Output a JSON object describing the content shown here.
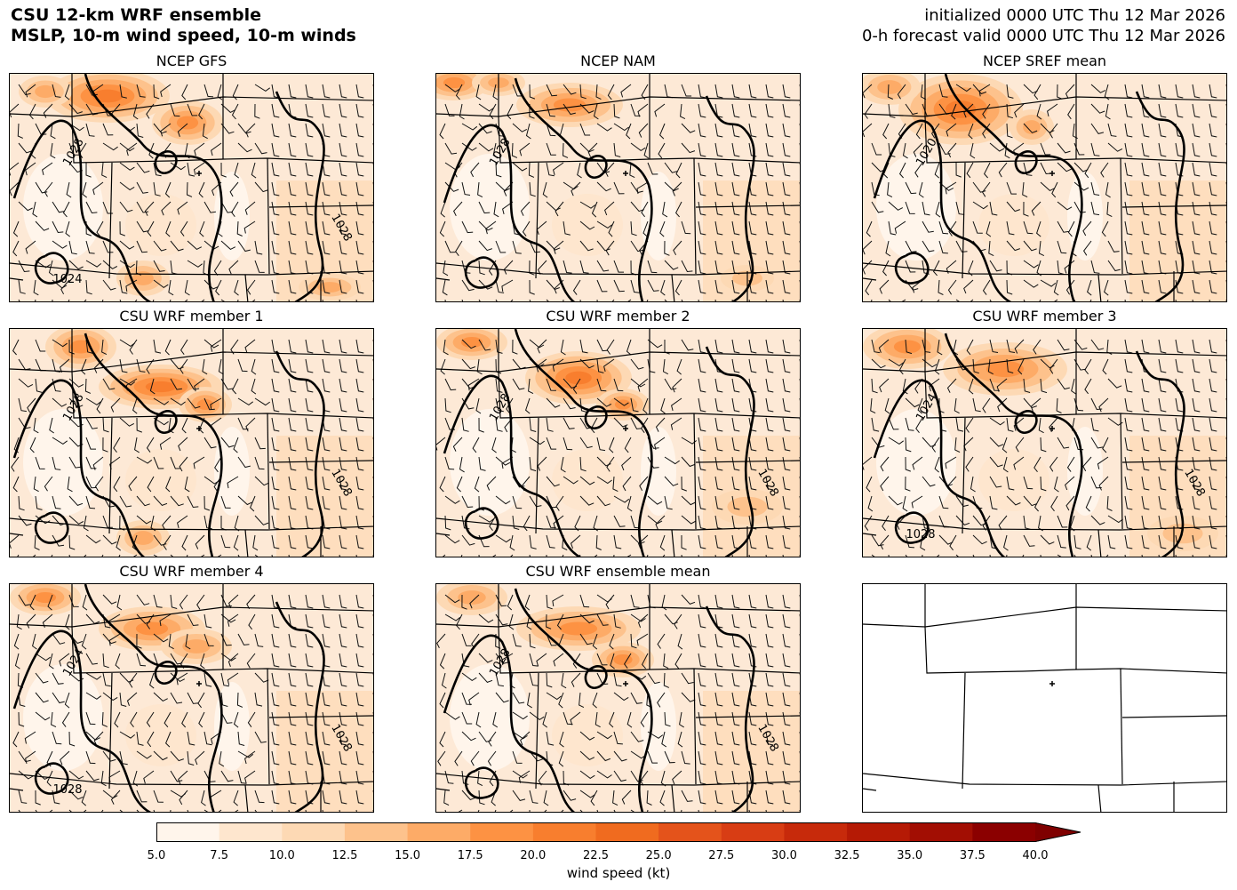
{
  "header": {
    "title_line1": "CSU 12-km WRF ensemble",
    "title_line2": "MSLP, 10-m wind speed, 10-m winds",
    "init_line": "initialized 0000 UTC Thu 12 Mar 2026",
    "valid_line": "0-h forecast valid 0000 UTC Thu 12 Mar 2026"
  },
  "panels": [
    {
      "title": "NCEP GFS",
      "contour_labels": [
        "1028",
        "1028",
        "1024"
      ]
    },
    {
      "title": "NCEP NAM",
      "contour_labels": [
        "1028"
      ]
    },
    {
      "title": "NCEP SREF mean",
      "contour_labels": [
        "1020"
      ]
    },
    {
      "title": "CSU WRF member 1",
      "contour_labels": [
        "1028",
        "1028"
      ]
    },
    {
      "title": "CSU WRF member 2",
      "contour_labels": [
        "1028",
        "1028"
      ]
    },
    {
      "title": "CSU WRF member 3",
      "contour_labels": [
        "1024",
        "1028",
        "1028"
      ]
    },
    {
      "title": "CSU WRF member 4",
      "contour_labels": [
        "1024",
        "1028",
        "1028"
      ]
    },
    {
      "title": "CSU WRF ensemble mean",
      "contour_labels": [
        "1028",
        "1028"
      ]
    },
    {
      "title": "",
      "contour_labels": []
    }
  ],
  "colorbar": {
    "label": "wind speed (kt)",
    "ticks": [
      "5.0",
      "7.5",
      "10.0",
      "12.5",
      "15.0",
      "17.5",
      "20.0",
      "22.5",
      "25.0",
      "27.5",
      "30.0",
      "32.5",
      "35.0",
      "37.5",
      "40.0"
    ],
    "colors": [
      "#fff5eb",
      "#fee6ce",
      "#fdd9b4",
      "#fdc28c",
      "#fdab67",
      "#fd9243",
      "#f87e2e",
      "#f06b1f",
      "#e4531b",
      "#d83d14",
      "#c72a0b",
      "#b51a05",
      "#a20e03",
      "#8b0000"
    ],
    "extend_color": "#7f0000"
  },
  "map_colors": {
    "background": "#fde9d6",
    "state_line": "#000000",
    "isobar": "#000000"
  }
}
